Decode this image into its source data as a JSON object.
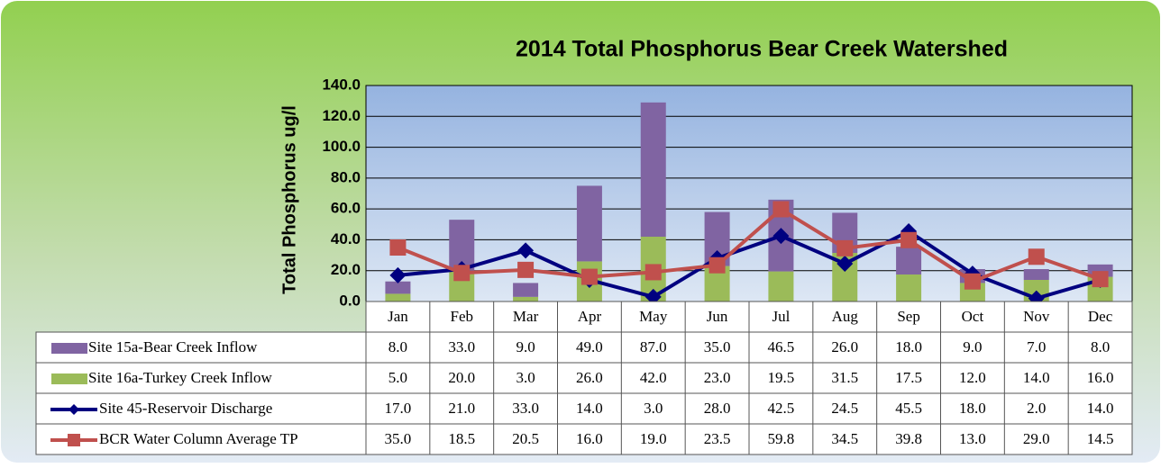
{
  "chart_data": {
    "type": "bar",
    "title": "2014 Total Phosphorus Bear Creek Watershed",
    "y_label": "Total Phosphorus ug/l",
    "categories": [
      "Jan",
      "Feb",
      "Mar",
      "Apr",
      "May",
      "Jun",
      "Jul",
      "Aug",
      "Sep",
      "Oct",
      "Nov",
      "Dec"
    ],
    "ylim": [
      0,
      140
    ],
    "yticks": [
      {
        "value": 0,
        "label": "0.0"
      },
      {
        "value": 20,
        "label": "20.0"
      },
      {
        "value": 40,
        "label": "40.0"
      },
      {
        "value": 60,
        "label": "60.0"
      },
      {
        "value": 80,
        "label": "80.0"
      },
      {
        "value": 100,
        "label": "100.0"
      },
      {
        "value": 120,
        "label": "120.0"
      },
      {
        "value": 140,
        "label": "140.0"
      }
    ],
    "grid": true,
    "series": [
      {
        "name": "Site 15a-Bear Creek Inflow",
        "type": "bar",
        "color": "#8064a2",
        "values": [
          8,
          33,
          9,
          49,
          87,
          35,
          46.5,
          26,
          18,
          9,
          7,
          8
        ],
        "value_labels": [
          "8.0",
          "33.0",
          "9.0",
          "49.0",
          "87.0",
          "35.0",
          "46.5",
          "26.0",
          "18.0",
          "9.0",
          "7.0",
          "8.0"
        ]
      },
      {
        "name": "Site 16a-Turkey Creek Inflow",
        "type": "bar",
        "color": "#9bbb59",
        "values": [
          5,
          20,
          3,
          26,
          42,
          23,
          19.5,
          31.5,
          17.5,
          12,
          14,
          16
        ],
        "value_labels": [
          "5.0",
          "20.0",
          "3.0",
          "26.0",
          "42.0",
          "23.0",
          "19.5",
          "31.5",
          "17.5",
          "12.0",
          "14.0",
          "16.0"
        ]
      },
      {
        "name": "Site 45-Reservoir Discharge",
        "type": "line",
        "color": "#000080",
        "marker": "diamond",
        "values": [
          17,
          21,
          33,
          14,
          3,
          28,
          42.5,
          24.5,
          45.5,
          18,
          2,
          14
        ],
        "value_labels": [
          "17.0",
          "21.0",
          "33.0",
          "14.0",
          "3.0",
          "28.0",
          "42.5",
          "24.5",
          "45.5",
          "18.0",
          "2.0",
          "14.0"
        ]
      },
      {
        "name": "BCR Water Column Average TP",
        "type": "line",
        "color": "#c0504d",
        "marker": "square",
        "values": [
          35,
          18.5,
          20.5,
          16,
          19,
          23.5,
          59.8,
          34.5,
          39.8,
          13,
          29,
          14.5
        ],
        "value_labels": [
          "35.0",
          "18.5",
          "20.5",
          "16.0",
          "19.0",
          "23.5",
          "59.8",
          "34.5",
          "39.8",
          "13.0",
          "29.0",
          "14.5"
        ]
      }
    ]
  }
}
